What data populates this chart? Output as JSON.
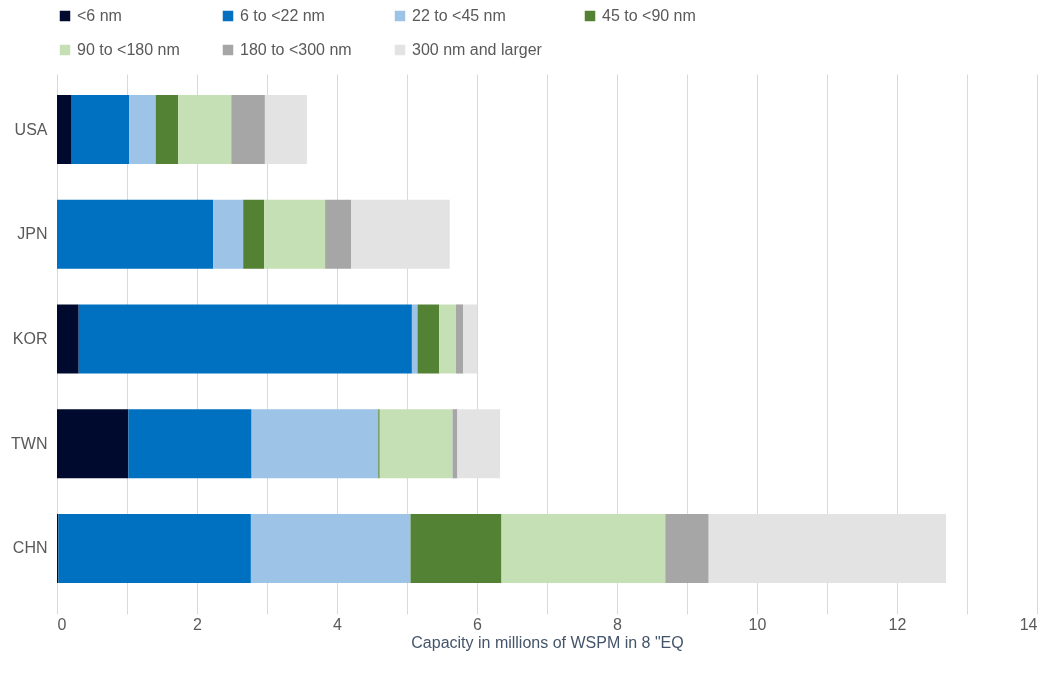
{
  "chart_data": {
    "type": "bar",
    "orientation": "horizontal",
    "stacked": true,
    "xlabel": "Capacity in millions of WSPM in 8 \"EQ",
    "categories": [
      "USA",
      "JPN",
      "KOR",
      "TWN",
      "CHN"
    ],
    "series": [
      {
        "name": "<6 nm",
        "color": "#000a2e",
        "values": [
          0.21,
          0,
          0.31,
          1.02,
          0.02
        ]
      },
      {
        "name": "6 to <22 nm",
        "color": "#0070c0",
        "values": [
          0.82,
          2.23,
          4.76,
          1.76,
          2.75
        ]
      },
      {
        "name": "22 to <45 nm",
        "color": "#9dc3e6",
        "values": [
          0.38,
          0.43,
          0.08,
          1.81,
          2.28
        ]
      },
      {
        "name": "45 to <90 nm",
        "color": "#548235",
        "values": [
          0.32,
          0.3,
          0.31,
          0.02,
          1.3
        ]
      },
      {
        "name": "90 to <180 nm",
        "color": "#c5e0b4",
        "values": [
          0.76,
          0.87,
          0.24,
          1.04,
          2.34
        ]
      },
      {
        "name": "180 to <300 nm",
        "color": "#a6a6a6",
        "values": [
          0.48,
          0.37,
          0.1,
          0.07,
          0.62
        ]
      },
      {
        "name": "300 nm and larger",
        "color": "#e3e3e3",
        "values": [
          0.6,
          1.41,
          0.2,
          0.61,
          3.39
        ]
      }
    ],
    "xlim": [
      0,
      14
    ],
    "xticks": [
      0,
      {
        "value": 1,
        "label": null
      },
      2,
      {
        "value": 3,
        "label": null
      },
      4,
      {
        "value": 5,
        "label": null
      },
      6,
      {
        "value": 7,
        "label": null
      },
      8,
      {
        "value": 9,
        "label": null
      },
      10,
      {
        "value": 11,
        "label": null
      },
      12,
      {
        "value": 13,
        "label": null
      },
      14
    ],
    "grid": "x",
    "legend": "top"
  }
}
